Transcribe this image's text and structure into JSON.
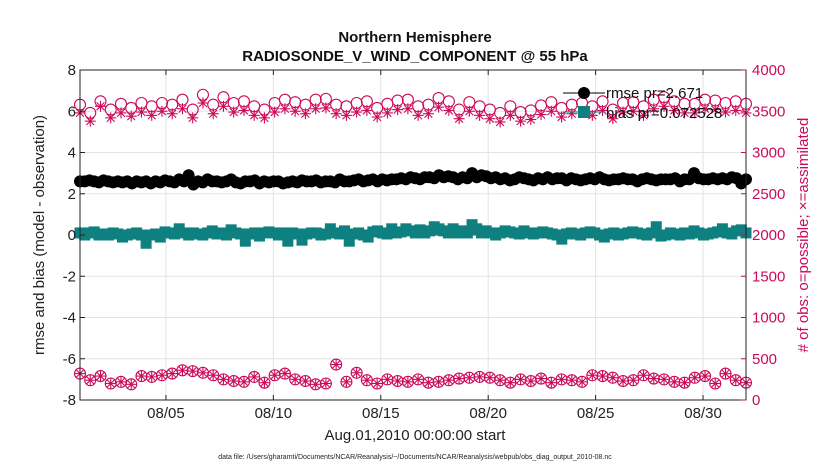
{
  "chart_data": {
    "type": "scatter",
    "title": "Northern Hemisphere",
    "subtitle": "RADIOSONDE_V_WIND_COMPONENT @ 55 hPa",
    "xlabel": "Aug.01,2010 00:00:00 start",
    "ylabel": "rmse and bias (model - observation)",
    "ylabel_right": "# of obs: o=possible; ×=assimilated",
    "footnote": "data file: /Users/gharamti/Documents/NCAR/Reanalysis/~/Documents/NCAR/Reanalysis/webpub/obs_diag_output_2010-08.nc",
    "x_range": [
      1,
      32
    ],
    "ylim": [
      -8,
      8
    ],
    "ylim_right": [
      0,
      4000
    ],
    "x_ticks": [
      5,
      10,
      15,
      20,
      25,
      30
    ],
    "x_tick_labels": [
      "08/05",
      "08/10",
      "08/15",
      "08/20",
      "08/25",
      "08/30"
    ],
    "y_ticks": [
      -8,
      -6,
      -4,
      -2,
      0,
      2,
      4,
      6,
      8
    ],
    "y_ticks_right": [
      0,
      500,
      1000,
      1500,
      2000,
      2500,
      3000,
      3500,
      4000
    ],
    "grid": true,
    "legend_position": "top-right",
    "series": [
      {
        "name": "rmse pr=2.671",
        "axis": "left",
        "marker": "filled-circle",
        "color": "#000000",
        "values": [
          2.6,
          2.6,
          2.65,
          2.6,
          2.55,
          2.65,
          2.6,
          2.55,
          2.6,
          2.55,
          2.6,
          2.5,
          2.6,
          2.55,
          2.6,
          2.5,
          2.6,
          2.55,
          2.65,
          2.6,
          2.55,
          2.7,
          2.6,
          2.9,
          2.45,
          2.6,
          2.55,
          2.7,
          2.6,
          2.6,
          2.55,
          2.6,
          2.7,
          2.55,
          2.5,
          2.6,
          2.6,
          2.65,
          2.5,
          2.6,
          2.55,
          2.6,
          2.6,
          2.5,
          2.55,
          2.6,
          2.55,
          2.65,
          2.6,
          2.6,
          2.65,
          2.55,
          2.6,
          2.6,
          2.55,
          2.7,
          2.6,
          2.6,
          2.65,
          2.7,
          2.6,
          2.65,
          2.7,
          2.6,
          2.7,
          2.65,
          2.7,
          2.7,
          2.75,
          2.7,
          2.8,
          2.75,
          2.7,
          2.8,
          2.8,
          2.75,
          2.9,
          2.8,
          2.85,
          2.8,
          2.7,
          2.8,
          2.75,
          3.0,
          2.8,
          2.9,
          2.85,
          2.75,
          2.8,
          2.7,
          2.75,
          2.65,
          2.7,
          2.8,
          2.75,
          2.7,
          2.65,
          2.75,
          2.7,
          2.8,
          2.7,
          2.75,
          2.75,
          2.65,
          2.75,
          2.7,
          2.65,
          2.7,
          2.75,
          2.7,
          2.8,
          2.7,
          2.65,
          2.7,
          2.7,
          2.75,
          2.7,
          2.7,
          2.6,
          2.7,
          2.75,
          2.7,
          2.65,
          2.7,
          2.7,
          2.7,
          2.75,
          2.6,
          2.7,
          2.7,
          3.0,
          2.75,
          2.7,
          2.7,
          2.75,
          2.7,
          2.75,
          2.7,
          2.8,
          2.75,
          2.5,
          2.7
        ]
      },
      {
        "name": "bias pr=0.072528",
        "axis": "left",
        "marker": "filled-square",
        "color": "#0e8080",
        "values": [
          0.1,
          0.0,
          0.1,
          0.15,
          0.0,
          0.05,
          0.0,
          0.1,
          0.05,
          -0.1,
          0.0,
          0.05,
          0.1,
          0.0,
          -0.4,
          0.0,
          0.05,
          -0.1,
          0.15,
          0.1,
          0.05,
          0.3,
          0.1,
          0.0,
          0.1,
          0.05,
          0.0,
          0.1,
          0.2,
          0.05,
          0.1,
          0.0,
          0.25,
          0.1,
          0.05,
          -0.3,
          0.05,
          0.1,
          -0.05,
          0.1,
          0.15,
          0.1,
          0.0,
          0.1,
          -0.3,
          0.1,
          0.05,
          -0.25,
          0.05,
          0.1,
          0.1,
          0.0,
          0.05,
          0.3,
          0.1,
          0.05,
          0.2,
          -0.3,
          0.05,
          0.1,
          0.0,
          -0.1,
          0.15,
          0.2,
          0.1,
          0.05,
          0.3,
          0.1,
          0.15,
          0.3,
          0.2,
          0.1,
          0.25,
          0.1,
          0.2,
          0.4,
          0.3,
          0.2,
          0.1,
          0.3,
          0.1,
          0.2,
          0.1,
          0.5,
          0.3,
          0.1,
          0.2,
          0.1,
          0.0,
          0.1,
          0.2,
          0.15,
          0.1,
          0.05,
          0.2,
          0.1,
          0.05,
          0.1,
          0.15,
          0.1,
          0.05,
          0.0,
          -0.2,
          0.05,
          0.1,
          0.05,
          0.0,
          0.1,
          0.15,
          0.1,
          0.0,
          -0.1,
          0.05,
          0.1,
          0.0,
          0.05,
          0.1,
          0.15,
          0.1,
          0.05,
          0.0,
          0.1,
          0.4,
          -0.05,
          0.0,
          0.1,
          0.05,
          0.0,
          0.1,
          0.05,
          0.2,
          0.1,
          0.0,
          0.05,
          0.1,
          0.15,
          0.3,
          0.1,
          0.05,
          0.2,
          0.25,
          0.1
        ]
      },
      {
        "name": "possible (high count)",
        "axis": "right",
        "marker": "open-circle",
        "color": "#cc0a5a",
        "values": [
          3580,
          3480,
          3620,
          3520,
          3590,
          3540,
          3600,
          3560,
          3600,
          3580,
          3640,
          3520,
          3700,
          3580,
          3670,
          3600,
          3620,
          3560,
          3520,
          3600,
          3640,
          3610,
          3580,
          3640,
          3650,
          3580,
          3560,
          3600,
          3620,
          3540,
          3590,
          3630,
          3640,
          3560,
          3580,
          3660,
          3620,
          3520,
          3610,
          3560,
          3520,
          3480,
          3560,
          3490,
          3510,
          3570,
          3610,
          3540,
          3580,
          3600,
          3560,
          3620,
          3520,
          3600,
          3610,
          3560,
          3640,
          3670,
          3620,
          3590,
          3590,
          3640,
          3630,
          3600,
          3620,
          3590
        ]
      },
      {
        "name": "assimilated (high count)",
        "axis": "right",
        "marker": "asterisk",
        "color": "#cc0a5a",
        "values": [
          3480,
          3380,
          3560,
          3420,
          3480,
          3440,
          3490,
          3450,
          3500,
          3470,
          3530,
          3420,
          3600,
          3470,
          3560,
          3490,
          3510,
          3450,
          3420,
          3490,
          3530,
          3500,
          3470,
          3530,
          3540,
          3470,
          3450,
          3490,
          3510,
          3430,
          3480,
          3520,
          3530,
          3450,
          3470,
          3550,
          3510,
          3410,
          3500,
          3450,
          3410,
          3370,
          3450,
          3380,
          3400,
          3460,
          3500,
          3430,
          3470,
          3490,
          3450,
          3510,
          3410,
          3490,
          3500,
          3450,
          3530,
          3560,
          3510,
          3480,
          3480,
          3530,
          3520,
          3490,
          3510,
          3480
        ]
      },
      {
        "name": "possible (low count)",
        "axis": "right",
        "marker": "open-circle",
        "color": "#cc0a5a",
        "values": [
          320,
          240,
          290,
          200,
          220,
          190,
          290,
          280,
          300,
          320,
          360,
          350,
          330,
          300,
          250,
          230,
          220,
          280,
          210,
          300,
          320,
          250,
          230,
          190,
          200,
          430,
          220,
          330,
          240,
          200,
          250,
          230,
          220,
          250,
          210,
          220,
          240,
          260,
          270,
          280,
          270,
          240,
          210,
          250,
          230,
          260,
          210,
          250,
          240,
          220,
          300,
          290,
          270,
          230,
          240,
          300,
          260,
          250,
          220,
          210,
          270,
          290,
          200,
          320,
          240,
          210
        ]
      },
      {
        "name": "assimilated (low count)",
        "axis": "right",
        "marker": "asterisk",
        "color": "#cc0a5a",
        "values": [
          320,
          240,
          290,
          200,
          220,
          190,
          290,
          280,
          300,
          320,
          360,
          350,
          330,
          300,
          250,
          230,
          220,
          280,
          210,
          300,
          320,
          250,
          230,
          190,
          200,
          430,
          220,
          330,
          240,
          200,
          250,
          230,
          220,
          250,
          210,
          220,
          240,
          260,
          270,
          280,
          270,
          240,
          210,
          250,
          230,
          260,
          210,
          250,
          240,
          220,
          300,
          290,
          270,
          230,
          240,
          300,
          260,
          250,
          220,
          210,
          270,
          290,
          200,
          320,
          240,
          210
        ]
      }
    ]
  }
}
